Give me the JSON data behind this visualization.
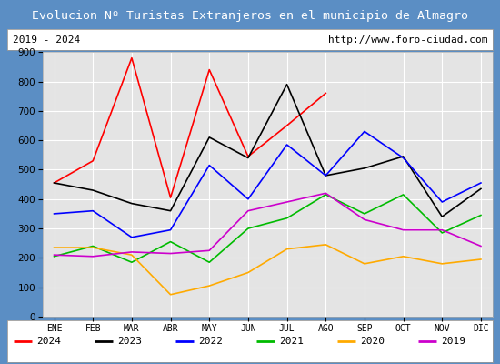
{
  "title": "Evolucion Nº Turistas Extranjeros en el municipio de Almagro",
  "subtitle_left": "2019 - 2024",
  "subtitle_right": "http://www.foro-ciudad.com",
  "title_bg_color": "#5b8ec4",
  "title_text_color": "#ffffff",
  "border_color": "#5b8ec4",
  "plot_bg_color": "#e4e4e4",
  "months": [
    "ENE",
    "FEB",
    "MAR",
    "ABR",
    "MAY",
    "JUN",
    "JUL",
    "AGO",
    "SEP",
    "OCT",
    "NOV",
    "DIC"
  ],
  "series": {
    "2024": {
      "color": "#ff0000",
      "values": [
        455,
        530,
        880,
        405,
        840,
        545,
        650,
        760,
        null,
        null,
        null,
        null
      ]
    },
    "2023": {
      "color": "#000000",
      "values": [
        455,
        430,
        385,
        360,
        610,
        540,
        790,
        480,
        505,
        545,
        340,
        435
      ]
    },
    "2022": {
      "color": "#0000ff",
      "values": [
        350,
        360,
        270,
        295,
        515,
        400,
        585,
        480,
        630,
        540,
        390,
        455
      ]
    },
    "2021": {
      "color": "#00bb00",
      "values": [
        205,
        240,
        185,
        255,
        185,
        300,
        335,
        415,
        350,
        415,
        285,
        345
      ]
    },
    "2020": {
      "color": "#ffaa00",
      "values": [
        235,
        235,
        210,
        75,
        105,
        150,
        230,
        245,
        180,
        205,
        180,
        195
      ]
    },
    "2019": {
      "color": "#cc00cc",
      "values": [
        210,
        205,
        220,
        215,
        225,
        360,
        390,
        420,
        330,
        295,
        295,
        240
      ]
    }
  },
  "ylim": [
    0,
    900
  ],
  "yticks": [
    0,
    100,
    200,
    300,
    400,
    500,
    600,
    700,
    800,
    900
  ],
  "legend_order": [
    "2024",
    "2023",
    "2022",
    "2021",
    "2020",
    "2019"
  ]
}
